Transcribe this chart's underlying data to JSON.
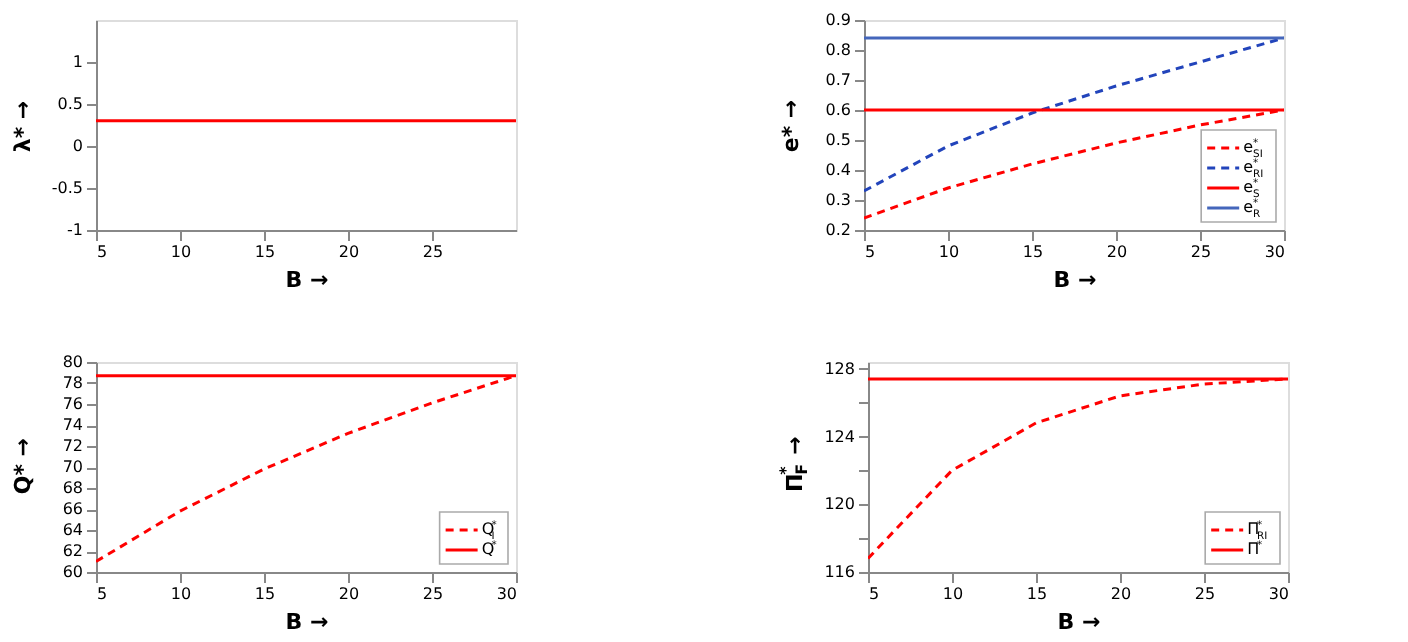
{
  "chart_data": [
    {
      "type": "line",
      "xlabel": "B →",
      "ylabel": "λ* →",
      "x": [
        5,
        10,
        15,
        20,
        25,
        30
      ],
      "xlim": [
        5,
        30
      ],
      "xticks": [
        5,
        10,
        15,
        20,
        25
      ],
      "ylim": [
        -1,
        1.5
      ],
      "yticks": [
        -1,
        -0.5,
        0,
        0.5,
        1
      ],
      "grid": false,
      "legend": false,
      "series": [
        {
          "color": "#ff0000",
          "line_style": "solid",
          "values": [
            0.3,
            0.3,
            0.3,
            0.3,
            0.3,
            0.3
          ]
        }
      ]
    },
    {
      "type": "line",
      "xlabel": "B →",
      "ylabel": "e* →",
      "x": [
        5,
        10,
        15,
        20,
        25,
        30
      ],
      "xlim": [
        5,
        30
      ],
      "xticks": [
        5,
        10,
        15,
        20,
        25,
        30
      ],
      "ylim": [
        0.2,
        0.9
      ],
      "yticks": [
        0.2,
        0.3,
        0.4,
        0.5,
        0.6,
        0.7,
        0.8,
        0.9
      ],
      "grid": false,
      "legend": "bottom right",
      "series": [
        {
          "name": "e$^{*}$$_{SI}$",
          "color": "#ff0000",
          "line_style": "dashed",
          "values": [
            0.24,
            0.34,
            0.42,
            0.49,
            0.55,
            0.6
          ]
        },
        {
          "name": "e$^{*}$$_{RI}$",
          "color": "#2244bb",
          "line_style": "dashed",
          "values": [
            0.33,
            0.48,
            0.59,
            0.68,
            0.76,
            0.84
          ]
        },
        {
          "name": "e$^{*}$$_{S}$",
          "color": "#ff0000",
          "line_style": "solid",
          "values": [
            0.6,
            0.6,
            0.6,
            0.6,
            0.6,
            0.6
          ]
        },
        {
          "name": "e$^{*}$$_{R}$",
          "color": "#4466bb",
          "line_style": "solid",
          "values": [
            0.84,
            0.84,
            0.84,
            0.84,
            0.84,
            0.84
          ]
        }
      ]
    },
    {
      "type": "line",
      "xlabel": "B →",
      "ylabel": "Q* →",
      "x": [
        5,
        10,
        15,
        20,
        25,
        30
      ],
      "xlim": [
        5,
        30
      ],
      "xticks": [
        5,
        10,
        15,
        20,
        25,
        30
      ],
      "ylim": [
        60,
        80
      ],
      "yticks": [
        60,
        62,
        64,
        66,
        68,
        70,
        72,
        74,
        76,
        78,
        80
      ],
      "grid": false,
      "legend": "bottom right",
      "series": [
        {
          "name": "Q$^{*}$$_{I}$",
          "color": "#ff0000",
          "line_style": "dashed",
          "values": [
            61,
            65.8,
            69.8,
            73.2,
            76.1,
            78.7
          ]
        },
        {
          "name": "Q$^{*}$",
          "color": "#ff0000",
          "line_style": "solid",
          "values": [
            78.7,
            78.7,
            78.7,
            78.7,
            78.7,
            78.7
          ]
        }
      ]
    },
    {
      "type": "line",
      "xlabel": "B →",
      "ylabel": "Π$^{*}$$_{F}$ →",
      "x": [
        5,
        10,
        15,
        20,
        25,
        30
      ],
      "xlim": [
        5,
        30
      ],
      "xticks": [
        5,
        10,
        15,
        20,
        25,
        30
      ],
      "ylim": [
        116,
        128.4
      ],
      "yticks": [
        116,
        {
          "value": 118,
          "label": null
        },
        120,
        {
          "value": 122,
          "label": null
        },
        124,
        {
          "value": 126,
          "label": null
        },
        128
      ],
      "grid": false,
      "legend": "bottom right",
      "series": [
        {
          "name": "Π$^{*}$$_{RI}$",
          "color": "#ff0000",
          "line_style": "dashed",
          "values": [
            116.8,
            122,
            124.8,
            126.4,
            127.1,
            127.4
          ]
        },
        {
          "name": "Π$^{*}$",
          "color": "#ff0000",
          "line_style": "solid",
          "values": [
            127.4,
            127.4,
            127.4,
            127.4,
            127.4,
            127.4
          ]
        }
      ]
    }
  ]
}
